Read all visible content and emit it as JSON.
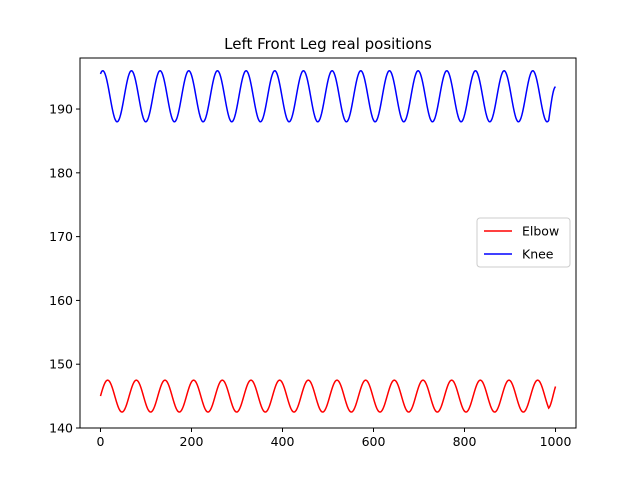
{
  "chart_data": {
    "type": "line",
    "title": "Left Front Leg real positions",
    "xlabel": "",
    "ylabel": "",
    "xlim": [
      -45,
      1045
    ],
    "ylim": [
      140,
      198
    ],
    "xticks": [
      0,
      200,
      400,
      600,
      800,
      1000
    ],
    "yticks": [
      140,
      150,
      160,
      170,
      180,
      190
    ],
    "grid": false,
    "legend_position": "center-right",
    "series": [
      {
        "name": "Elbow",
        "color": "#ff0000",
        "x_range": [
          0,
          1000
        ],
        "mean": 145.0,
        "amplitude": 2.5,
        "period": 63,
        "start_value": 145.0,
        "end_value": 146.5
      },
      {
        "name": "Knee",
        "color": "#0000ff",
        "x_range": [
          0,
          1000
        ],
        "mean": 192.0,
        "amplitude": 4.0,
        "period": 63,
        "start_value": 195.5,
        "end_value": 193.5
      }
    ]
  }
}
